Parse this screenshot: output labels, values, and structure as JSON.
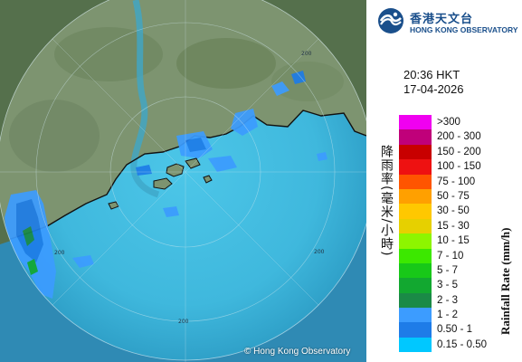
{
  "logo": {
    "name_zh": "香港天文台",
    "name_en": "HONG KONG OBSERVATORY"
  },
  "map": {
    "copyright": "© Hong Kong Observatory",
    "range_labels": [
      "200",
      "200",
      "200",
      "200"
    ],
    "colors": {
      "sea": "#3fb8dd",
      "sea_outside": "#2f8ab4",
      "land": "#5f7a55",
      "coast": "#111111"
    }
  },
  "observation": {
    "time": "20:36 HKT",
    "date": "17-04-2026"
  },
  "legend": {
    "title_zh": "降雨率(毫米/小時)",
    "title_en": "Rainfall Rate (mm/h)",
    "items": [
      {
        "label": ">300",
        "color": "#f000f0"
      },
      {
        "label": "200 - 300",
        "color": "#c0007a"
      },
      {
        "label": "150 - 200",
        "color": "#c80000"
      },
      {
        "label": "100 - 150",
        "color": "#ee1111"
      },
      {
        "label": "75 - 100",
        "color": "#ff5500"
      },
      {
        "label": "50 - 75",
        "color": "#ffa000"
      },
      {
        "label": "30 - 50",
        "color": "#ffc800"
      },
      {
        "label": "15 - 30",
        "color": "#e6d000"
      },
      {
        "label": "10 - 15",
        "color": "#8df500"
      },
      {
        "label": "7 - 10",
        "color": "#3ce800"
      },
      {
        "label": "5 - 7",
        "color": "#18c818"
      },
      {
        "label": "3 - 5",
        "color": "#12a830"
      },
      {
        "label": "2 - 3",
        "color": "#1a8a46"
      },
      {
        "label": "1 - 2",
        "color": "#3c9cff"
      },
      {
        "label": "0.50 - 1",
        "color": "#1e7ce8"
      },
      {
        "label": "0.15 - 0.50",
        "color": "#00c8ff"
      }
    ]
  }
}
